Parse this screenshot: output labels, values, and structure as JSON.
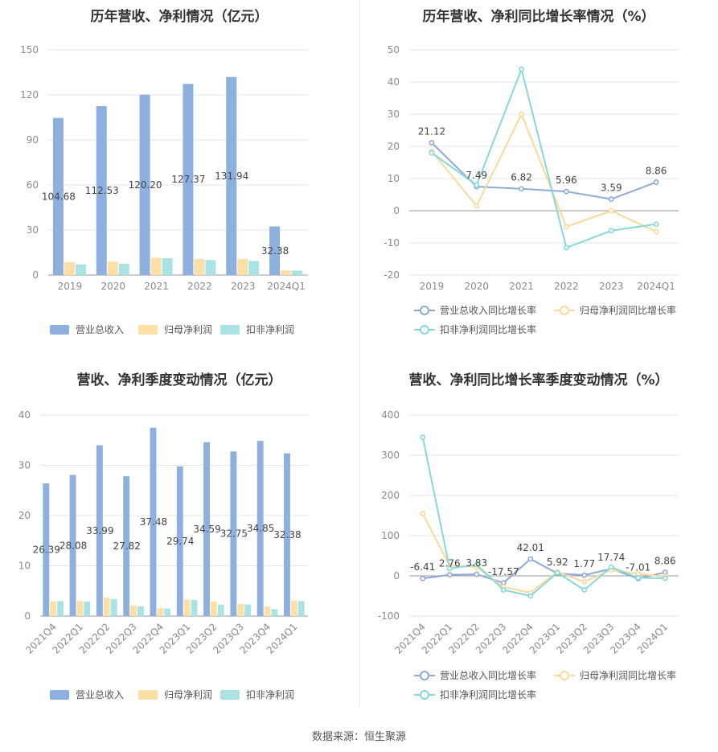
{
  "source_label": "数据来源：恒生聚源",
  "chart_data": [
    {
      "type": "bar",
      "title": "历年营收、净利情况（亿元）",
      "categories": [
        "2019",
        "2020",
        "2021",
        "2022",
        "2023",
        "2024Q1"
      ],
      "ylim": [
        0,
        150
      ],
      "yticks": [
        0,
        30,
        60,
        90,
        120,
        150
      ],
      "grid": true,
      "legend_placement": "bottom",
      "series": [
        {
          "name": "营业总收入",
          "color": "#8eb0de",
          "values": [
            104.68,
            112.53,
            120.2,
            127.37,
            131.94,
            32.38
          ],
          "labels": [
            "104.68",
            "112.53",
            "120.20",
            "127.37",
            "131.94",
            "32.38"
          ]
        },
        {
          "name": "归母净利润",
          "color": "#fddfa8",
          "values": [
            8.6,
            8.9,
            11.5,
            10.8,
            10.7,
            3.1
          ]
        },
        {
          "name": "扣非净利润",
          "color": "#a9e3e4",
          "values": [
            7.1,
            7.6,
            11.2,
            10.0,
            9.4,
            3.0
          ]
        }
      ]
    },
    {
      "type": "line",
      "title": "历年营收、净利同比增长率情况（%）",
      "categories": [
        "2019",
        "2020",
        "2021",
        "2022",
        "2023",
        "2024Q1"
      ],
      "ylim": [
        -20,
        50
      ],
      "yticks": [
        -20,
        -10,
        0,
        10,
        20,
        30,
        40,
        50
      ],
      "grid": true,
      "legend_placement": "bottom",
      "series": [
        {
          "name": "营业总收入同比增长率",
          "color": "#8eaad6",
          "values": [
            21.12,
            7.49,
            6.82,
            5.96,
            3.59,
            8.86
          ],
          "labels": [
            "21.12",
            "7.49",
            "6.82",
            "5.96",
            "3.59",
            "8.86"
          ]
        },
        {
          "name": "归母净利润同比增长率",
          "color": "#fcd89a",
          "values": [
            18.5,
            1.5,
            30.0,
            -5.0,
            0.0,
            -6.5
          ]
        },
        {
          "name": "扣非净利润同比增长率",
          "color": "#86d8d9",
          "values": [
            18.0,
            8.0,
            44.0,
            -11.5,
            -6.2,
            -4.2
          ]
        }
      ]
    },
    {
      "type": "bar",
      "title": "营收、净利季度变动情况（亿元）",
      "categories": [
        "2021Q4",
        "2022Q1",
        "2022Q2",
        "2022Q3",
        "2022Q4",
        "2023Q1",
        "2023Q2",
        "2023Q3",
        "2023Q4",
        "2024Q1"
      ],
      "ylim": [
        0,
        40
      ],
      "yticks": [
        0,
        10,
        20,
        30,
        40
      ],
      "grid": true,
      "legend_placement": "bottom",
      "series": [
        {
          "name": "营业总收入",
          "color": "#8eb0de",
          "values": [
            26.39,
            28.08,
            33.99,
            27.82,
            37.48,
            29.74,
            34.59,
            32.75,
            34.85,
            32.38
          ],
          "labels": [
            "26.39",
            "28.08",
            "33.99",
            "27.82",
            "37.48",
            "29.74",
            "34.59",
            "32.75",
            "34.85",
            "32.38"
          ]
        },
        {
          "name": "归母净利润",
          "color": "#fddfa8",
          "values": [
            2.9,
            3.0,
            3.7,
            2.1,
            1.6,
            3.3,
            2.9,
            2.4,
            1.9,
            3.1
          ]
        },
        {
          "name": "扣非净利润",
          "color": "#a9e3e4",
          "values": [
            3.0,
            2.9,
            3.4,
            1.9,
            1.5,
            3.2,
            2.3,
            2.3,
            1.4,
            3.0
          ]
        }
      ]
    },
    {
      "type": "line",
      "title": "营收、净利同比增长率季度变动情况（%）",
      "categories": [
        "2021Q4",
        "2022Q1",
        "2022Q2",
        "2022Q3",
        "2022Q4",
        "2023Q1",
        "2023Q2",
        "2023Q3",
        "2023Q4",
        "2024Q1"
      ],
      "ylim": [
        -100,
        400
      ],
      "yticks": [
        -100,
        0,
        100,
        200,
        300,
        400
      ],
      "grid": true,
      "legend_placement": "bottom",
      "series": [
        {
          "name": "营业总收入同比增长率",
          "color": "#8eaad6",
          "values": [
            -6.41,
            2.76,
            3.83,
            -17.57,
            42.01,
            5.92,
            1.77,
            17.74,
            -7.01,
            8.86
          ],
          "labels": [
            "-6.41",
            "2.76",
            "3.83",
            "-17.57",
            "42.01",
            "5.92",
            "1.77",
            "17.74",
            "-7.01",
            "8.86"
          ]
        },
        {
          "name": "归母净利润同比增长率",
          "color": "#fcd89a",
          "values": [
            155,
            25,
            22,
            -28,
            -42,
            10,
            -15,
            15,
            5,
            -2
          ]
        },
        {
          "name": "扣非净利润同比增长率",
          "color": "#86d8d9",
          "values": [
            345,
            18,
            28,
            -35,
            -50,
            8,
            -35,
            22,
            -5,
            -6
          ]
        }
      ]
    }
  ]
}
